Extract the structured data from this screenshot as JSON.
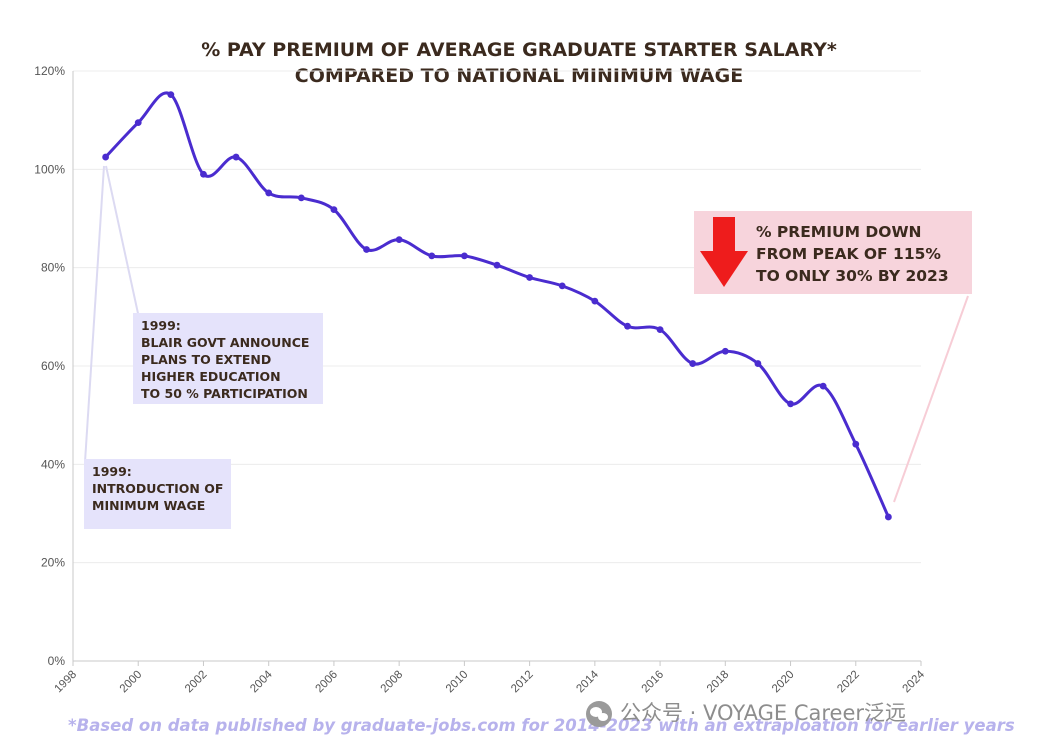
{
  "chart_data": {
    "type": "line",
    "title_lines": [
      "% PAY PREMIUM OF AVERAGE GRADUATE STARTER SALARY*",
      "COMPARED TO NATIONAL MINIMUM WAGE"
    ],
    "x": [
      1999,
      2000,
      2001,
      2002,
      2003,
      2004,
      2005,
      2006,
      2007,
      2008,
      2009,
      2010,
      2011,
      2012,
      2013,
      2014,
      2015,
      2016,
      2017,
      2018,
      2019,
      2020,
      2021,
      2022,
      2023
    ],
    "values": [
      102.5,
      109.5,
      115.2,
      99,
      102.5,
      95.2,
      94.2,
      91.8,
      83.7,
      85.7,
      82.4,
      82.4,
      80.5,
      78,
      76.3,
      73.2,
      68.1,
      67.4,
      60.5,
      63,
      60.5,
      52.3,
      55.9,
      44.1,
      29.3
    ],
    "xlim": [
      1998,
      2024
    ],
    "ylim": [
      0,
      120
    ],
    "xticks": [
      "1998",
      "2000",
      "2002",
      "2004",
      "2006",
      "2008",
      "2010",
      "2012",
      "2014",
      "2016",
      "2018",
      "2020",
      "2022",
      "2024"
    ],
    "yticks": [
      "0%",
      "20%",
      "40%",
      "60%",
      "80%",
      "100%",
      "120%"
    ],
    "line_color": "#4a2ccf",
    "annotations": {
      "blair": [
        "1999:",
        "BLAIR GOVT ANNOUNCE",
        "PLANS TO EXTEND",
        "HIGHER EDUCATION",
        "TO 50 % PARTICIPATION"
      ],
      "min_wage": [
        "1999:",
        "INTRODUCTION OF",
        "MINIMUM WAGE"
      ],
      "callout": [
        "% PREMIUM DOWN",
        "FROM PEAK OF 115%",
        "TO ONLY 30% BY 2023"
      ]
    },
    "footnote": "*Based on data published by graduate-jobs.com for 2014-2023 with an extraploation for earlier years"
  },
  "watermark": "公众号 · VOYAGE Career泛远"
}
